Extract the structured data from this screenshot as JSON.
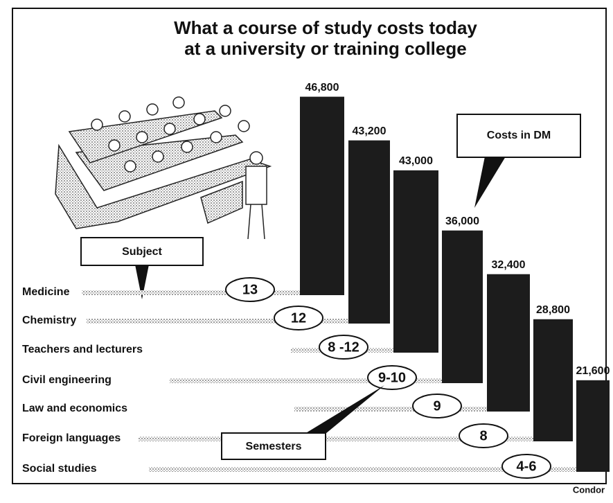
{
  "chart_data": {
    "type": "bar",
    "title": [
      "What a course of study costs today",
      "at a university or training college"
    ],
    "categories": [
      "Medicine",
      "Chemistry",
      "Teachers and lecturers",
      "Civil engineering",
      "Law and economics",
      "Foreign languages",
      "Social studies"
    ],
    "values": [
      46800,
      43200,
      43000,
      36000,
      32400,
      28800,
      21600
    ],
    "value_labels": [
      "46,800",
      "43,200",
      "43,000",
      "36,000",
      "32,400",
      "28,800",
      "21,600"
    ],
    "semesters": [
      "13",
      "12",
      "8 -12",
      "9-10",
      "9",
      "8",
      "4-6"
    ],
    "color": "#1c1c1c",
    "annotations": {
      "costs": "Costs in DM",
      "subject": "Subject",
      "semesters": "Semesters",
      "source": "Condor"
    }
  }
}
